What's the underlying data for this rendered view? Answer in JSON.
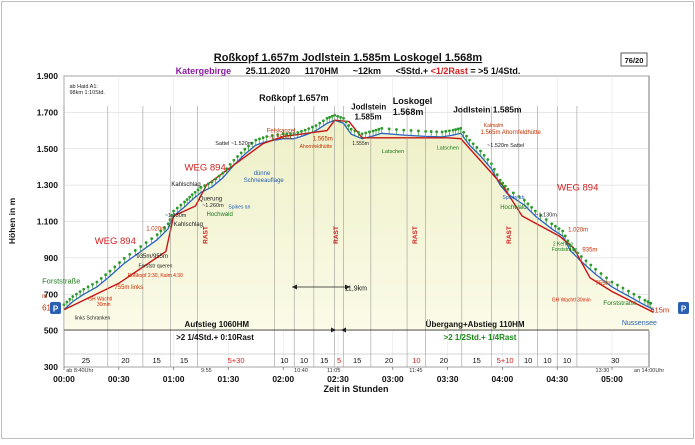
{
  "header": {
    "title": "Roßkopf 1.657m Jodlstein 1.585m Loskogel 1.568m",
    "region": "Katergebirge",
    "date": "25.11.2020",
    "hm": "1170HM",
    "dist": "~12km",
    "time_a": "<5Std.+ ",
    "time_b": "<1/2Rast",
    "time_c": " = >5 1/4Std.",
    "badge": "76/20"
  },
  "chart_data": {
    "type": "area",
    "xlabel": "Zeit in Stunden",
    "ylabel": "Höhen in m",
    "xlim": [
      0,
      5.4
    ],
    "ylim": [
      300,
      1900
    ],
    "x_ticks": [
      0,
      0.5,
      1,
      1.5,
      2,
      2.5,
      3,
      3.5,
      4,
      4.5,
      5
    ],
    "x_tick_labels": [
      "00:00",
      "00:30",
      "01:00",
      "01:30",
      "02:00",
      "02:30",
      "03:00",
      "03:30",
      "04:00",
      "04:30",
      "05:00"
    ],
    "y_ticks": [
      300,
      500,
      700,
      900,
      1100,
      1300,
      1500,
      1700,
      1900
    ],
    "y_tick_labels": [
      "300",
      "500",
      "700",
      "900",
      "1.100",
      "1.300",
      "1.500",
      "1.700",
      "1.900"
    ],
    "grid": true,
    "profile": [
      [
        0,
        615
      ],
      [
        0.08,
        660
      ],
      [
        0.18,
        700
      ],
      [
        0.3,
        740
      ],
      [
        0.42,
        800
      ],
      [
        0.55,
        870
      ],
      [
        0.7,
        935
      ],
      [
        0.85,
        1000
      ],
      [
        0.95,
        1060
      ],
      [
        1.0,
        1130
      ],
      [
        1.1,
        1180
      ],
      [
        1.17,
        1220
      ],
      [
        1.25,
        1260
      ],
      [
        1.35,
        1290
      ],
      [
        1.45,
        1340
      ],
      [
        1.55,
        1410
      ],
      [
        1.65,
        1470
      ],
      [
        1.75,
        1520
      ],
      [
        1.85,
        1540
      ],
      [
        2.0,
        1555
      ],
      [
        2.1,
        1555
      ],
      [
        2.2,
        1575
      ],
      [
        2.3,
        1600
      ],
      [
        2.4,
        1640
      ],
      [
        2.47,
        1657
      ],
      [
        2.55,
        1640
      ],
      [
        2.62,
        1580
      ],
      [
        2.72,
        1555
      ],
      [
        2.82,
        1570
      ],
      [
        2.9,
        1585
      ],
      [
        3.1,
        1575
      ],
      [
        3.3,
        1568
      ],
      [
        3.45,
        1565
      ],
      [
        3.55,
        1575
      ],
      [
        3.62,
        1585
      ],
      [
        3.7,
        1520
      ],
      [
        3.8,
        1460
      ],
      [
        3.9,
        1390
      ],
      [
        3.98,
        1300
      ],
      [
        4.05,
        1250
      ],
      [
        4.2,
        1190
      ],
      [
        4.3,
        1130
      ],
      [
        4.45,
        1060
      ],
      [
        4.55,
        1020
      ],
      [
        4.62,
        940
      ],
      [
        4.72,
        880
      ],
      [
        4.85,
        810
      ],
      [
        5.0,
        740
      ],
      [
        5.15,
        690
      ],
      [
        5.3,
        640
      ],
      [
        5.38,
        615
      ]
    ],
    "route_line": [
      [
        0,
        615
      ],
      [
        0.5,
        760
      ],
      [
        0.93,
        935
      ],
      [
        1.0,
        1130
      ],
      [
        1.2,
        1185
      ],
      [
        1.3,
        1300
      ],
      [
        1.82,
        1530
      ],
      [
        2.02,
        1570
      ],
      [
        2.1,
        1575
      ],
      [
        2.4,
        1600
      ],
      [
        2.47,
        1657
      ],
      [
        2.6,
        1650
      ],
      [
        2.72,
        1560
      ],
      [
        3.5,
        1560
      ],
      [
        3.62,
        1555
      ],
      [
        4.0,
        1300
      ],
      [
        4.18,
        1130
      ],
      [
        4.52,
        1020
      ],
      [
        4.65,
        955
      ],
      [
        4.8,
        790
      ],
      [
        5.0,
        715
      ],
      [
        5.38,
        600
      ]
    ],
    "segments": [
      {
        "label": "25",
        "x0": 0,
        "x1": 0.4,
        "red": false
      },
      {
        "label": "20",
        "x0": 0.4,
        "x1": 0.72,
        "red": false
      },
      {
        "label": "15",
        "x0": 0.72,
        "x1": 0.97,
        "red": false
      },
      {
        "label": "15",
        "x0": 0.97,
        "x1": 1.22,
        "red": false
      },
      {
        "label": "5+30",
        "x0": 1.22,
        "x1": 1.92,
        "red": true
      },
      {
        "label": "10",
        "x0": 1.92,
        "x1": 2.1,
        "red": false
      },
      {
        "label": "10",
        "x0": 2.1,
        "x1": 2.28,
        "red": false
      },
      {
        "label": "15",
        "x0": 2.28,
        "x1": 2.47,
        "red": false
      },
      {
        "label": "5",
        "x0": 2.47,
        "x1": 2.55,
        "red": true
      },
      {
        "label": "15",
        "x0": 2.55,
        "x1": 2.8,
        "red": false
      },
      {
        "label": "20",
        "x0": 2.8,
        "x1": 3.13,
        "red": false
      },
      {
        "label": "10",
        "x0": 3.13,
        "x1": 3.3,
        "red": true
      },
      {
        "label": "20",
        "x0": 3.3,
        "x1": 3.63,
        "red": false
      },
      {
        "label": "15",
        "x0": 3.63,
        "x1": 3.9,
        "red": false
      },
      {
        "label": "5+10",
        "x0": 3.9,
        "x1": 4.15,
        "red": true
      },
      {
        "label": "10",
        "x0": 4.15,
        "x1": 4.32,
        "red": false
      },
      {
        "label": "10",
        "x0": 4.32,
        "x1": 4.5,
        "red": false
      },
      {
        "label": "10",
        "x0": 4.5,
        "x1": 4.68,
        "red": false
      },
      {
        "label": "30",
        "x0": 4.68,
        "x1": 5.38,
        "red": false
      }
    ],
    "rast_markers": [
      {
        "x": 1.31,
        "label": "RAST"
      },
      {
        "x": 2.5,
        "label": "RAST"
      },
      {
        "x": 3.22,
        "label": "RAST"
      },
      {
        "x": 4.08,
        "label": "RAST"
      }
    ],
    "time_marks": [
      {
        "x": 0.02,
        "label": "ab 8:40Uhr"
      },
      {
        "x": 1.25,
        "label": "9:55"
      },
      {
        "x": 2.1,
        "label": "10:40"
      },
      {
        "x": 2.4,
        "label": "11:05"
      },
      {
        "x": 3.15,
        "label": "11:45"
      },
      {
        "x": 4.85,
        "label": "13:30"
      },
      {
        "x": 5.2,
        "label": "an 14:00Uhr"
      }
    ],
    "annotations": [
      {
        "x": 0.05,
        "y": 1835,
        "text": "ab Haid A1:",
        "color": "#222222",
        "size": 5.5,
        "bold": false
      },
      {
        "x": 0.05,
        "y": 1800,
        "text": "98km 1:10Std.",
        "color": "#222222",
        "size": 5.5,
        "bold": false
      },
      {
        "x": -0.2,
        "y": 760,
        "text": "Forststraße",
        "color": "#1a7a1a",
        "size": 7.5,
        "bold": false
      },
      {
        "x": -0.2,
        "y": 610,
        "text": "615",
        "color": "#c03000",
        "size": 8,
        "bold": false
      },
      {
        "x": -0.2,
        "y": 680,
        "text": "m",
        "color": "#c03000",
        "size": 6,
        "bold": false
      },
      {
        "x": 0.1,
        "y": 560,
        "text": "links Schranken",
        "color": "#222222",
        "size": 5,
        "bold": false
      },
      {
        "x": 0.22,
        "y": 665,
        "text": "GH Wachtl",
        "color": "#cc2200",
        "size": 5,
        "bold": false
      },
      {
        "x": 0.3,
        "y": 635,
        "text": "30min",
        "color": "#cc2200",
        "size": 5,
        "bold": false
      },
      {
        "x": 0.28,
        "y": 975,
        "text": "WEG 894",
        "color": "#d42020",
        "size": 9.5,
        "bold": false
      },
      {
        "x": 0.46,
        "y": 730,
        "text": "755m links",
        "color": "#c03000",
        "size": 6,
        "bold": false
      },
      {
        "x": 0.58,
        "y": 795,
        "text": "Roßkopf 2:30, Kalm 4:30",
        "color": "#cc2200",
        "size": 5,
        "bold": false
      },
      {
        "x": 0.68,
        "y": 848,
        "text": "Forststr queren",
        "color": "#222222",
        "size": 5,
        "bold": false
      },
      {
        "x": 0.66,
        "y": 900,
        "text": "935m/955m",
        "color": "#222222",
        "size": 6,
        "bold": false
      },
      {
        "x": 0.75,
        "y": 1050,
        "text": "1.020m",
        "color": "#c03000",
        "size": 6,
        "bold": false
      },
      {
        "x": 0.92,
        "y": 1125,
        "text": "~1.130m",
        "color": "#222222",
        "size": 5.5,
        "bold": false
      },
      {
        "x": 1.0,
        "y": 1075,
        "text": "Kahlschlag",
        "color": "#222222",
        "size": 6,
        "bold": false
      },
      {
        "x": 1.1,
        "y": 1380,
        "text": "WEG 894",
        "color": "#d42020",
        "size": 9.5,
        "bold": false
      },
      {
        "x": 0.98,
        "y": 1295,
        "text": "Kahlschlag",
        "color": "#222222",
        "size": 6,
        "bold": false
      },
      {
        "x": 1.23,
        "y": 1215,
        "text": "Querung",
        "color": "#222222",
        "size": 6,
        "bold": false
      },
      {
        "x": 1.26,
        "y": 1180,
        "text": "~1.260m",
        "color": "#222222",
        "size": 5.5,
        "bold": false
      },
      {
        "x": 1.3,
        "y": 1130,
        "text": "Hochwald",
        "color": "#1a7a1a",
        "size": 6,
        "bold": false
      },
      {
        "x": 1.5,
        "y": 1172,
        "text": "Spikes an",
        "color": "#2a60b0",
        "size": 5,
        "bold": false
      },
      {
        "x": 1.73,
        "y": 1355,
        "text": "dünne",
        "color": "#2a60b0",
        "size": 6,
        "bold": false
      },
      {
        "x": 1.64,
        "y": 1318,
        "text": "Schneeauflage",
        "color": "#2a60b0",
        "size": 6,
        "bold": false
      },
      {
        "x": 1.38,
        "y": 1520,
        "text": "Sattel ~1.520m",
        "color": "#222222",
        "size": 5.5,
        "bold": false
      },
      {
        "x": 1.85,
        "y": 1590,
        "text": "Felskanzel",
        "color": "#c03000",
        "size": 6,
        "bold": false
      },
      {
        "x": 1.86,
        "y": 1553,
        "text": "~1.555m",
        "color": "#c03000",
        "size": 6,
        "bold": false
      },
      {
        "x": 1.78,
        "y": 1762,
        "text": "Roßkopf 1.657m",
        "color": "#111111",
        "size": 9,
        "bold": true
      },
      {
        "x": 2.27,
        "y": 1545,
        "text": "1.565m",
        "color": "#c03000",
        "size": 6,
        "bold": false
      },
      {
        "x": 2.15,
        "y": 1505,
        "text": "Ahornfeldhütte",
        "color": "#c03000",
        "size": 5,
        "bold": false
      },
      {
        "x": 2.63,
        "y": 1520,
        "text": "1.555m",
        "color": "#222222",
        "size": 5,
        "bold": false
      },
      {
        "x": 2.62,
        "y": 1715,
        "text": "Jodlstein",
        "color": "#111111",
        "size": 8,
        "bold": true
      },
      {
        "x": 2.65,
        "y": 1660,
        "text": "1.585m",
        "color": "#111111",
        "size": 8,
        "bold": true
      },
      {
        "x": 3.0,
        "y": 1745,
        "text": "Loskogel",
        "color": "#111111",
        "size": 9,
        "bold": true
      },
      {
        "x": 3.0,
        "y": 1685,
        "text": "1.568m",
        "color": "#111111",
        "size": 9,
        "bold": true
      },
      {
        "x": 2.9,
        "y": 1478,
        "text": "Latschen",
        "color": "#1a7a1a",
        "size": 5.5,
        "bold": false
      },
      {
        "x": 3.4,
        "y": 1495,
        "text": "Latschen",
        "color": "#1a7a1a",
        "size": 5.5,
        "bold": false
      },
      {
        "x": 3.55,
        "y": 1700,
        "text": "Jodlstein 1.585m",
        "color": "#111111",
        "size": 8.5,
        "bold": true
      },
      {
        "x": 3.83,
        "y": 1620,
        "text": "Kalmalm",
        "color": "#c03000",
        "size": 5,
        "bold": false
      },
      {
        "x": 3.8,
        "y": 1582,
        "text": "1.565m Ahornfeldhütte",
        "color": "#c03000",
        "size": 6,
        "bold": false
      },
      {
        "x": 3.86,
        "y": 1510,
        "text": "~1.520m Sattel",
        "color": "#222222",
        "size": 5.5,
        "bold": false
      },
      {
        "x": 4.0,
        "y": 1225,
        "text": "Spikes ab",
        "color": "#2a60b0",
        "size": 5,
        "bold": false
      },
      {
        "x": 3.98,
        "y": 1170,
        "text": "Hochwald",
        "color": "#1a7a1a",
        "size": 6,
        "bold": false
      },
      {
        "x": 4.5,
        "y": 1270,
        "text": "WEG 894",
        "color": "#d42020",
        "size": 9.5,
        "bold": false
      },
      {
        "x": 4.3,
        "y": 1128,
        "text": "~1.130m",
        "color": "#222222",
        "size": 5.5,
        "bold": false
      },
      {
        "x": 4.6,
        "y": 1045,
        "text": "1.020m",
        "color": "#c03000",
        "size": 6,
        "bold": false
      },
      {
        "x": 4.46,
        "y": 968,
        "text": "2 Kehren",
        "color": "#1a7a1a",
        "size": 5,
        "bold": false
      },
      {
        "x": 4.45,
        "y": 938,
        "text": "Forststraße",
        "color": "#1a7a1a",
        "size": 5,
        "bold": false
      },
      {
        "x": 4.73,
        "y": 935,
        "text": "935m",
        "color": "#c03000",
        "size": 6,
        "bold": false
      },
      {
        "x": 4.85,
        "y": 750,
        "text": "755m",
        "color": "#c03000",
        "size": 6,
        "bold": false
      },
      {
        "x": 4.45,
        "y": 660,
        "text": "GH Wachtl 30min",
        "color": "#cc2200",
        "size": 5,
        "bold": false
      },
      {
        "x": 4.92,
        "y": 640,
        "text": "Forststraße",
        "color": "#1a7a1a",
        "size": 6.5,
        "bold": false
      },
      {
        "x": 5.35,
        "y": 600,
        "text": "615m",
        "color": "#c03000",
        "size": 7.5,
        "bold": false
      },
      {
        "x": 5.09,
        "y": 530,
        "text": "Nussensee",
        "color": "#2a60b0",
        "size": 7,
        "bold": false
      },
      {
        "x": 2.56,
        "y": 720,
        "text": "11,9km",
        "color": "#111111",
        "size": 7,
        "bold": false
      },
      {
        "x": 1.1,
        "y": 520,
        "text": "Aufstieg 1060HM",
        "color": "#111111",
        "size": 8,
        "bold": true
      },
      {
        "x": 3.3,
        "y": 520,
        "text": "Übergang+Abstieg  110HM",
        "color": "#111111",
        "size": 8,
        "bold": true
      }
    ],
    "summary_up": ">2 1/4Std.+ 0:10Rast",
    "summary_down": ">2 1/2Std.+ 1/4Rast",
    "parking_label": "P"
  }
}
